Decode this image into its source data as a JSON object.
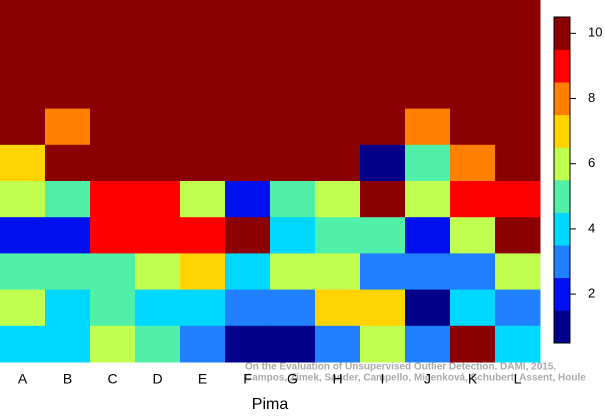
{
  "chart_data": {
    "type": "heatmap",
    "xlabel": "Pima",
    "categories": [
      "A",
      "B",
      "C",
      "D",
      "E",
      "F",
      "G",
      "H",
      "I",
      "J",
      "K",
      "L"
    ],
    "values": [
      [
        10,
        10,
        10,
        10,
        10,
        10,
        10,
        10,
        10,
        10,
        10,
        10
      ],
      [
        10,
        10,
        10,
        10,
        10,
        10,
        10,
        10,
        10,
        10,
        10,
        10
      ],
      [
        10,
        10,
        10,
        10,
        10,
        10,
        10,
        10,
        10,
        10,
        10,
        10
      ],
      [
        10,
        8,
        10,
        10,
        10,
        10,
        10,
        10,
        10,
        8,
        10,
        10
      ],
      [
        7,
        10,
        10,
        10,
        10,
        10,
        10,
        10,
        1,
        5,
        8,
        10
      ],
      [
        6,
        5,
        9,
        9,
        6,
        2,
        5,
        6,
        10,
        6,
        9,
        9
      ],
      [
        2,
        2,
        9,
        9,
        9,
        10,
        4,
        5,
        5,
        2,
        6,
        10
      ],
      [
        5,
        5,
        5,
        6,
        7,
        4,
        6,
        6,
        3,
        3,
        3,
        6
      ],
      [
        6,
        4,
        5,
        4,
        4,
        3,
        3,
        7,
        7,
        1,
        4,
        3
      ],
      [
        4,
        4,
        6,
        5,
        3,
        1,
        1,
        3,
        6,
        3,
        10,
        4
      ]
    ],
    "colorscale": [
      "#00008b",
      "#0010ee",
      "#2080ff",
      "#00d8ff",
      "#50f0a8",
      "#c0ff50",
      "#ffd400",
      "#ff7f00",
      "#ff0000",
      "#8b0000"
    ],
    "clim": [
      0.5,
      10.5
    ],
    "cticks": [
      2,
      4,
      6,
      8,
      10
    ],
    "annotations": [
      "On the Evaluation of Unsupervised Outlier Detection. DAMI, 2015.",
      "Campos, Zimek, Sander, Campello, Micenková, Schubert, Assent, Houle"
    ]
  }
}
